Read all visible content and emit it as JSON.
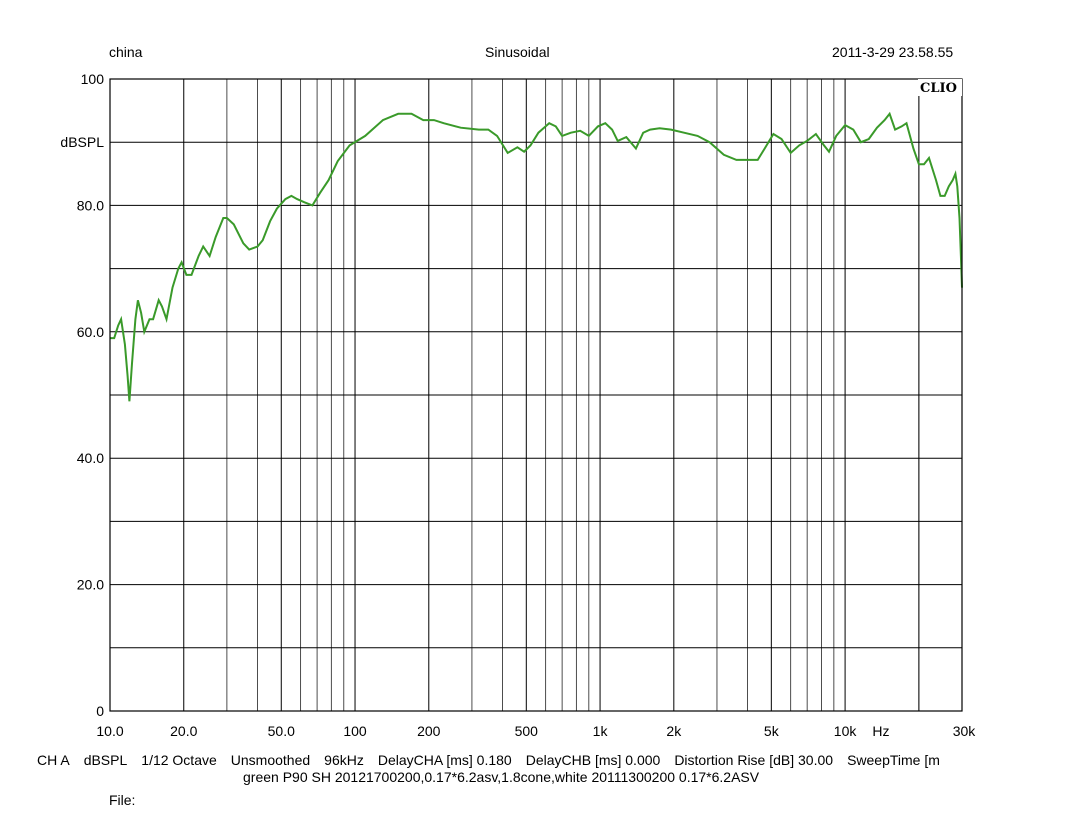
{
  "header": {
    "left": "china",
    "center": "Sinusoidal",
    "right": "2011-3-29 23.58.55"
  },
  "brand": "CLIO",
  "footer": {
    "items": [
      "CH A",
      "dBSPL",
      "1/12 Octave",
      "Unsmoothed",
      "96kHz",
      "DelayCHA [ms] 0.180",
      "DelayCHB [ms] 0.000",
      "Distortion Rise [dB] 30.00",
      "SweepTime [m"
    ],
    "line2": "green P90 SH 20121700200,0.17*6.2asv,1.8cone,white 20111300200 0.17*6.2ASV",
    "file_label": "File:"
  },
  "colors": {
    "trace": "#3a9a2a",
    "grid": "#000000"
  },
  "chart_data": {
    "type": "line",
    "title": "Sinusoidal",
    "xlabel": "Hz",
    "ylabel": "dBSPL",
    "xscale": "log",
    "xlim": [
      10,
      30000
    ],
    "ylim": [
      0,
      100
    ],
    "grid": true,
    "x_ticks": [
      10,
      20,
      50,
      100,
      200,
      500,
      1000,
      2000,
      5000,
      10000,
      30000
    ],
    "x_tick_labels": [
      "10.0",
      "20.0",
      "50.0",
      "100",
      "200",
      "500",
      "1k",
      "2k",
      "5k",
      "10k",
      "30k"
    ],
    "y_tick_labels": [
      {
        "value": 100,
        "label": "100"
      },
      {
        "value": 90,
        "label": "dBSPL"
      },
      {
        "value": 80,
        "label": "80.0"
      },
      {
        "value": 60,
        "label": "60.0"
      },
      {
        "value": 40,
        "label": "40.0"
      },
      {
        "value": 20,
        "label": "20.0"
      },
      {
        "value": 0,
        "label": "0"
      }
    ],
    "series": [
      {
        "color": "#3a9a2a",
        "points": [
          [
            10,
            59
          ],
          [
            10.4,
            59
          ],
          [
            10.8,
            61
          ],
          [
            11.1,
            62
          ],
          [
            11.5,
            58
          ],
          [
            11.8,
            53
          ],
          [
            12.0,
            49
          ],
          [
            12.3,
            55
          ],
          [
            12.7,
            62
          ],
          [
            13.0,
            65
          ],
          [
            13.4,
            63
          ],
          [
            13.8,
            60
          ],
          [
            14.5,
            62
          ],
          [
            15.0,
            62
          ],
          [
            15.8,
            65
          ],
          [
            16.3,
            64
          ],
          [
            17.0,
            62
          ],
          [
            18.0,
            67
          ],
          [
            19.0,
            70
          ],
          [
            19.6,
            71
          ],
          [
            20.5,
            69
          ],
          [
            21.5,
            69
          ],
          [
            23.0,
            72
          ],
          [
            24.0,
            73.5
          ],
          [
            25.5,
            72
          ],
          [
            27.0,
            75
          ],
          [
            29.0,
            78
          ],
          [
            30.0,
            78
          ],
          [
            32.0,
            77
          ],
          [
            35.0,
            74
          ],
          [
            37.0,
            73
          ],
          [
            40.0,
            73.5
          ],
          [
            42.0,
            74.5
          ],
          [
            45.0,
            77.5
          ],
          [
            48.0,
            79.5
          ],
          [
            52.0,
            81
          ],
          [
            55.0,
            81.5
          ],
          [
            58.0,
            81
          ],
          [
            62.0,
            80.5
          ],
          [
            67.0,
            80
          ],
          [
            72.0,
            82
          ],
          [
            78.0,
            84
          ],
          [
            85.0,
            87
          ],
          [
            95.0,
            89.5
          ],
          [
            110.0,
            91
          ],
          [
            130.0,
            93.5
          ],
          [
            150.0,
            94.5
          ],
          [
            170.0,
            94.5
          ],
          [
            190.0,
            93.5
          ],
          [
            210.0,
            93.5
          ],
          [
            230.0,
            93
          ],
          [
            270.0,
            92.3
          ],
          [
            320.0,
            92
          ],
          [
            350.0,
            92
          ],
          [
            380.0,
            91
          ],
          [
            420.0,
            88.3
          ],
          [
            460.0,
            89.2
          ],
          [
            490.0,
            88.5
          ],
          [
            520.0,
            89.5
          ],
          [
            560.0,
            91.5
          ],
          [
            620.0,
            93
          ],
          [
            660.0,
            92.5
          ],
          [
            700.0,
            91
          ],
          [
            760.0,
            91.5
          ],
          [
            830.0,
            91.8
          ],
          [
            900.0,
            91
          ],
          [
            980.0,
            92.5
          ],
          [
            1050.0,
            93
          ],
          [
            1120.0,
            92
          ],
          [
            1180.0,
            90.2
          ],
          [
            1280.0,
            90.8
          ],
          [
            1400.0,
            89
          ],
          [
            1500.0,
            91.5
          ],
          [
            1600.0,
            92
          ],
          [
            1750.0,
            92.2
          ],
          [
            1950.0,
            92
          ],
          [
            2200.0,
            91.5
          ],
          [
            2500.0,
            91
          ],
          [
            2800.0,
            90
          ],
          [
            3200.0,
            88
          ],
          [
            3600.0,
            87.2
          ],
          [
            4000.0,
            87.2
          ],
          [
            4400.0,
            87.2
          ],
          [
            4700.0,
            89
          ],
          [
            5100.0,
            91.3
          ],
          [
            5500.0,
            90.5
          ],
          [
            6000.0,
            88.3
          ],
          [
            6500.0,
            89.5
          ],
          [
            7000.0,
            90.2
          ],
          [
            7600.0,
            91.3
          ],
          [
            8200.0,
            89.5
          ],
          [
            8600.0,
            88.5
          ],
          [
            9200.0,
            91
          ],
          [
            10000.0,
            92.7
          ],
          [
            10800.0,
            92
          ],
          [
            11600.0,
            90
          ],
          [
            12500.0,
            90.5
          ],
          [
            13500.0,
            92.3
          ],
          [
            14500.0,
            93.5
          ],
          [
            15200.0,
            94.5
          ],
          [
            16000.0,
            92
          ],
          [
            17000.0,
            92.5
          ],
          [
            17800.0,
            93
          ],
          [
            19000.0,
            89
          ],
          [
            20000.0,
            86.5
          ],
          [
            21000.0,
            86.5
          ],
          [
            22000.0,
            87.5
          ],
          [
            23500.0,
            84
          ],
          [
            24500.0,
            81.5
          ],
          [
            25500.0,
            81.5
          ],
          [
            26500.0,
            83
          ],
          [
            27500.0,
            84
          ],
          [
            28200.0,
            85
          ],
          [
            28700.0,
            83
          ],
          [
            29300.0,
            78
          ],
          [
            29700.0,
            72
          ],
          [
            30000.0,
            67
          ]
        ]
      }
    ]
  }
}
